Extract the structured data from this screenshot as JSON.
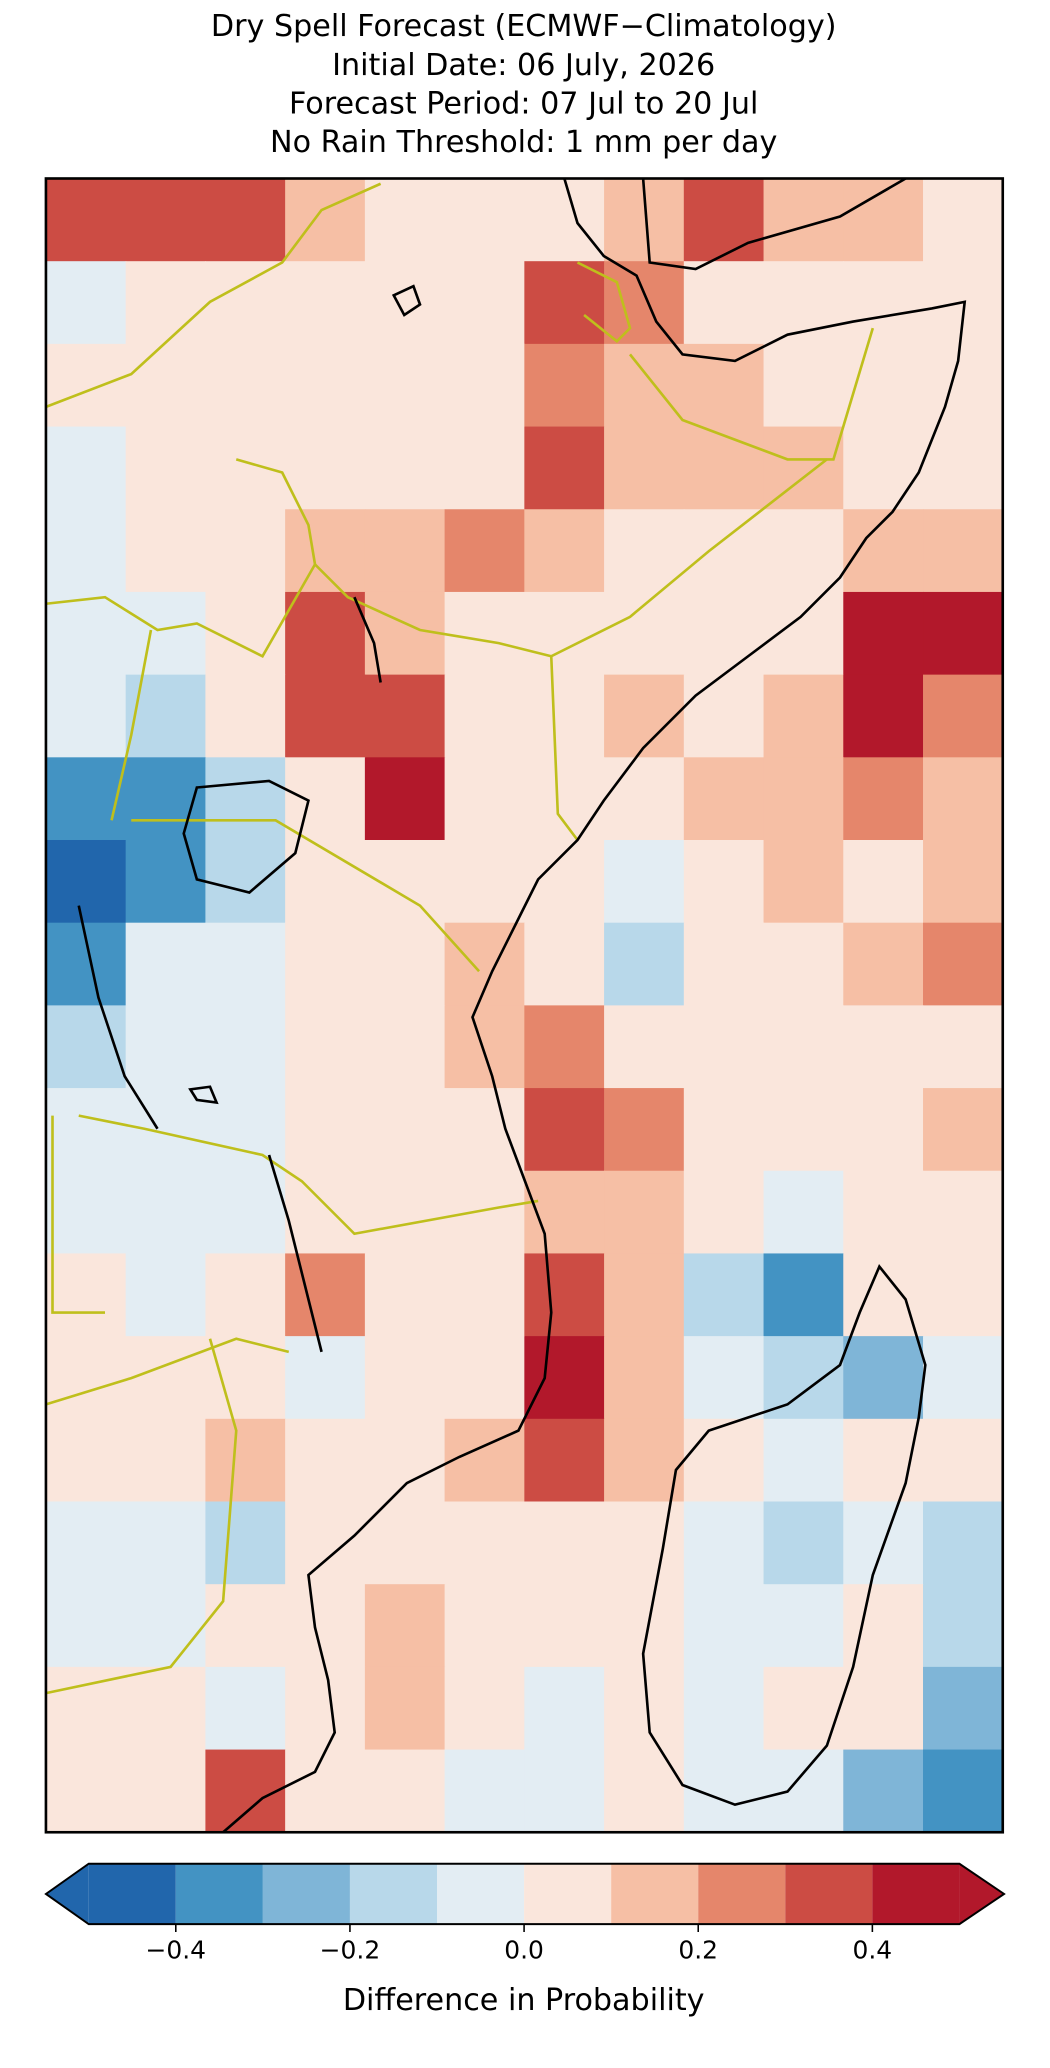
{
  "map": {
    "title": [
      "Dry Spell Forecast (ECMWF−Climatology)",
      "Initial Date: 06 July, 2026",
      "Forecast Period: 07 Jul to 20 Jul",
      "No Rain Threshold: 1 mm per day"
    ],
    "field": [
      [
        0.35,
        0.35,
        0.35,
        0.15,
        0.05,
        0.05,
        0.05,
        0.15,
        0.35,
        0.15,
        0.15,
        0.05
      ],
      [
        -0.05,
        0.05,
        0.05,
        0.05,
        0.05,
        0.05,
        0.35,
        0.25,
        0.05,
        0.05,
        0.05,
        0.05
      ],
      [
        0.05,
        0.05,
        0.05,
        0.05,
        0.05,
        0.05,
        0.25,
        0.15,
        0.15,
        0.05,
        0.05,
        0.05
      ],
      [
        -0.05,
        0.05,
        0.05,
        0.05,
        0.05,
        0.05,
        0.35,
        0.15,
        0.15,
        0.15,
        0.05,
        0.05
      ],
      [
        -0.05,
        0.05,
        0.05,
        0.15,
        0.15,
        0.25,
        0.15,
        0.05,
        0.05,
        0.05,
        0.15,
        0.15
      ],
      [
        -0.05,
        -0.05,
        0.05,
        0.35,
        0.15,
        0.05,
        0.05,
        0.05,
        0.05,
        0.05,
        0.45,
        0.45
      ],
      [
        -0.05,
        -0.15,
        0.05,
        0.35,
        0.35,
        0.05,
        0.05,
        0.15,
        0.05,
        0.15,
        0.45,
        0.25
      ],
      [
        -0.35,
        -0.35,
        -0.15,
        0.05,
        0.45,
        0.05,
        0.05,
        0.05,
        0.15,
        0.15,
        0.25,
        0.15
      ],
      [
        -0.45,
        -0.35,
        -0.15,
        0.05,
        0.05,
        0.05,
        0.05,
        -0.05,
        0.05,
        0.15,
        0.05,
        0.15
      ],
      [
        -0.35,
        -0.05,
        -0.05,
        0.05,
        0.05,
        0.15,
        0.05,
        -0.15,
        0.05,
        0.05,
        0.15,
        0.25
      ],
      [
        -0.15,
        -0.05,
        -0.05,
        0.05,
        0.05,
        0.15,
        0.25,
        0.05,
        0.05,
        0.05,
        0.05,
        0.05
      ],
      [
        -0.05,
        -0.05,
        -0.05,
        0.05,
        0.05,
        0.05,
        0.35,
        0.25,
        0.05,
        0.05,
        0.05,
        0.15
      ],
      [
        -0.05,
        -0.05,
        -0.05,
        0.05,
        0.05,
        0.05,
        0.15,
        0.15,
        0.05,
        -0.05,
        0.05,
        0.05
      ],
      [
        0.05,
        -0.05,
        0.05,
        0.25,
        0.05,
        0.05,
        0.35,
        0.15,
        -0.15,
        -0.35,
        0.05,
        0.05
      ],
      [
        0.05,
        0.05,
        0.05,
        -0.05,
        0.05,
        0.05,
        0.45,
        0.15,
        -0.05,
        -0.15,
        -0.25,
        -0.05
      ],
      [
        0.05,
        0.05,
        0.15,
        0.05,
        0.05,
        0.15,
        0.35,
        0.15,
        0.05,
        -0.05,
        0.05,
        0.05
      ],
      [
        -0.05,
        -0.05,
        -0.15,
        0.05,
        0.05,
        0.05,
        0.05,
        0.05,
        -0.05,
        -0.15,
        -0.05,
        -0.15
      ],
      [
        -0.05,
        -0.05,
        0.05,
        0.05,
        0.15,
        0.05,
        0.05,
        0.05,
        -0.05,
        -0.05,
        0.05,
        -0.15
      ],
      [
        0.05,
        0.05,
        -0.05,
        0.05,
        0.15,
        0.05,
        -0.05,
        0.05,
        -0.05,
        0.05,
        0.05,
        -0.25
      ],
      [
        0.05,
        0.05,
        0.35,
        0.05,
        0.05,
        -0.05,
        -0.05,
        0.05,
        -0.05,
        -0.05,
        -0.25,
        -0.35
      ]
    ],
    "colorbar": {
      "label": "Difference in Probability",
      "extend": "both",
      "boundaries": [
        -0.5,
        -0.4,
        -0.3,
        -0.2,
        -0.1,
        0,
        0.1,
        0.2,
        0.3,
        0.4,
        0.5
      ],
      "colors": [
        "#2166ac",
        "#4393c3",
        "#7fb5d7",
        "#b8d8ea",
        "#e3edf3",
        "#fae6dc",
        "#f6bfa5",
        "#e5866b",
        "#cc4c44",
        "#b2182b"
      ],
      "ticks": [
        {
          "value": -0.4,
          "label": "−0.4"
        },
        {
          "value": -0.2,
          "label": "−0.2"
        },
        {
          "value": 0,
          "label": "0.0"
        },
        0.2,
        0.4
      ]
    }
  }
}
